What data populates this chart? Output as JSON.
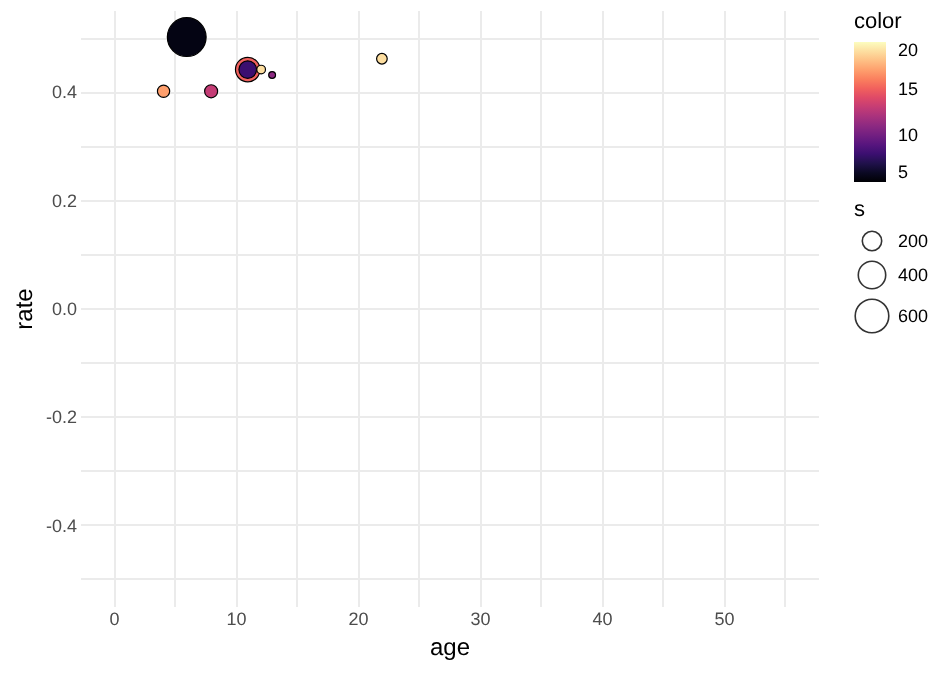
{
  "chart_data": {
    "type": "bubble",
    "xlabel": "age",
    "ylabel": "rate",
    "legend_title": "s",
    "clabel": "color",
    "x": [
      6,
      11,
      4.1,
      8,
      11,
      12.1,
      13,
      22
    ],
    "values": [
      0.5,
      0.44,
      0.4,
      0.4,
      0.44,
      0.44,
      0.43,
      0.46
    ],
    "sizes": [
      800,
      320,
      80,
      90,
      165,
      40,
      25,
      60
    ],
    "cvalues": [
      5.5,
      15,
      17,
      13,
      8,
      19,
      11,
      19
    ],
    "size_legend": [
      200,
      400,
      600
    ],
    "clim": [
      5,
      20
    ],
    "cticks": [
      5,
      10,
      15,
      20
    ],
    "xlim": [
      -2.75,
      57.75
    ],
    "xticks": [
      0,
      {
        "value": 5,
        "label": null
      },
      10,
      {
        "value": 15,
        "label": null
      },
      20,
      {
        "value": 25,
        "label": null
      },
      30,
      {
        "value": 35,
        "label": null
      },
      40,
      {
        "value": 45,
        "label": null
      },
      50,
      {
        "value": 55,
        "label": null
      }
    ],
    "ylim": [
      -0.55,
      0.55
    ],
    "yticks": [
      {
        "value": -0.5,
        "label": null
      },
      {
        "value": -0.4,
        "label": "-0.4"
      },
      {
        "value": -0.3,
        "label": null
      },
      {
        "value": -0.2,
        "label": "-0.2"
      },
      {
        "value": -0.1,
        "label": null
      },
      {
        "value": 0,
        "label": "0.0"
      },
      {
        "value": 0.1,
        "label": null
      },
      {
        "value": 0.2,
        "label": "0.2"
      },
      {
        "value": 0.3,
        "label": null
      },
      {
        "value": 0.4,
        "label": "0.4"
      },
      {
        "value": 0.5,
        "label": null
      }
    ],
    "grid": true
  }
}
